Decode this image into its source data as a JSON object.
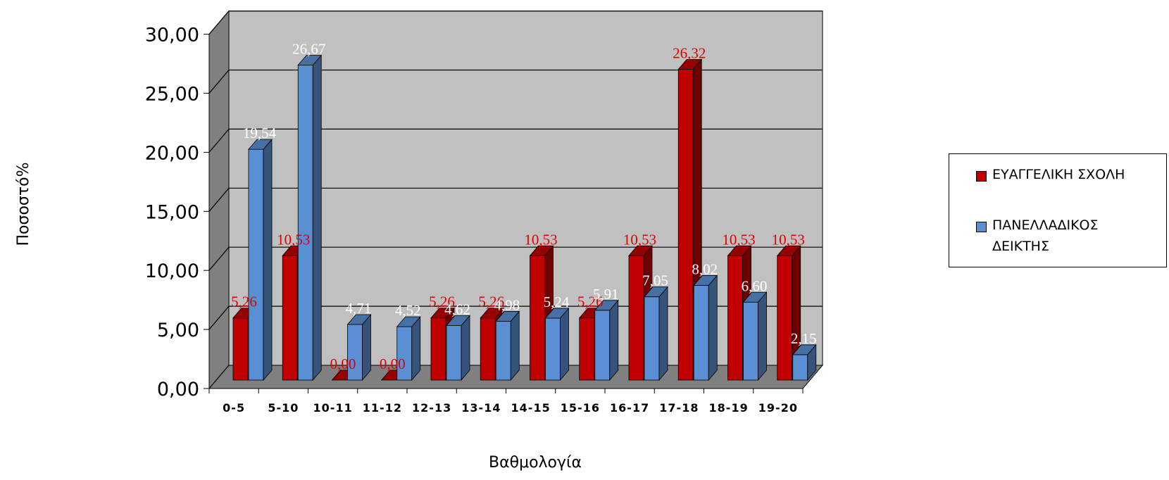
{
  "chart_data": {
    "type": "bar",
    "title": "",
    "xlabel": "Βαθμολογία",
    "ylabel": "Ποσοστό%",
    "ylim": [
      0,
      30
    ],
    "y_ticks": [
      "0,00",
      "5,00",
      "10,00",
      "15,00",
      "20,00",
      "25,00",
      "30,00"
    ],
    "grid": true,
    "legend_position": "right",
    "categories": [
      "0-5",
      "5-10",
      "10-11",
      "11-12",
      "12-13",
      "13-14",
      "14-15",
      "15-16",
      "16-17",
      "17-18",
      "18-19",
      "19-20"
    ],
    "series": [
      {
        "name": "ΕΥΑΓΓΕΛΙΚΗ ΣΧΟΛΗ",
        "color": "#c00000",
        "label_color": "#e00000",
        "values": [
          5.26,
          10.53,
          0.0,
          0.0,
          5.26,
          5.26,
          10.53,
          5.26,
          10.53,
          26.32,
          10.53,
          10.53
        ],
        "labels": [
          "5,26",
          "10,53",
          "0,00",
          "0,00",
          "5,26",
          "5,26",
          "10,53",
          "5,26",
          "10,53",
          "26,32",
          "10,53",
          "10,53"
        ]
      },
      {
        "name": "ΠΑΝΕΛΛΑΔΙΚΟΣ ΔΕΙΚΤΗΣ",
        "color": "#5b8fd4",
        "label_color": "#ffffff",
        "values": [
          19.54,
          26.67,
          4.71,
          4.52,
          4.62,
          4.98,
          5.24,
          5.91,
          7.05,
          8.02,
          6.6,
          2.15
        ],
        "labels": [
          "19,54",
          "26,67",
          "4,71",
          "4,52",
          "4,62",
          "4,98",
          "5,24",
          "5,91",
          "7,05",
          "8,02",
          "6,60",
          "2,15"
        ]
      }
    ]
  }
}
